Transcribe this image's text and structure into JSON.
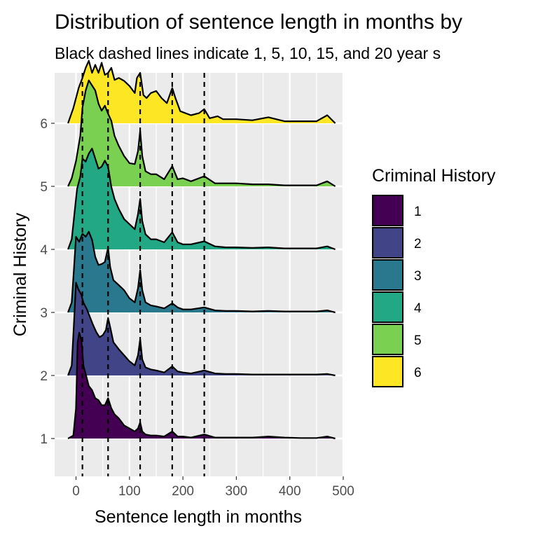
{
  "chart_data": {
    "type": "ridgeline",
    "title": "Distribution of sentence length in months by",
    "subtitle": "Black dashed lines indicate 1, 5, 10, 15, and 20 year s",
    "xlabel": "Sentence length in months",
    "ylabel": "Criminal History",
    "xlim": [
      -40,
      500
    ],
    "ylim": [
      0.4,
      6.8
    ],
    "x_ticks": [
      0,
      100,
      200,
      300,
      400,
      500
    ],
    "y_ticks": [
      1,
      2,
      3,
      4,
      5,
      6
    ],
    "reference_lines_x": [
      12,
      60,
      120,
      180,
      240
    ],
    "grid": true,
    "panel_background": "#ebebeb",
    "legend": {
      "title": "Criminal History",
      "position": "right",
      "entries": [
        "1",
        "2",
        "3",
        "4",
        "5",
        "6"
      ]
    },
    "series": [
      {
        "name": "1",
        "color": "#440154",
        "x": [
          -15,
          -5,
          0,
          3,
          6,
          10,
          14,
          18,
          24,
          30,
          36,
          42,
          48,
          54,
          60,
          66,
          72,
          80,
          90,
          100,
          110,
          116,
          120,
          124,
          130,
          140,
          150,
          165,
          180,
          190,
          200,
          215,
          240,
          260,
          280,
          300,
          330,
          360,
          390,
          420,
          450,
          470,
          485
        ],
        "y": [
          0,
          0.03,
          0.3,
          0.95,
          1.05,
          0.98,
          0.72,
          0.64,
          0.52,
          0.48,
          0.4,
          0.38,
          0.33,
          0.33,
          0.4,
          0.3,
          0.24,
          0.2,
          0.13,
          0.1,
          0.07,
          0.1,
          0.16,
          0.07,
          0.04,
          0.03,
          0.03,
          0.02,
          0.07,
          0.02,
          0.02,
          0.01,
          0.04,
          0.01,
          0.01,
          0.01,
          0.01,
          0.02,
          0.01,
          0.005,
          0.005,
          0.02,
          0
        ]
      },
      {
        "name": "2",
        "color": "#414487",
        "x": [
          -15,
          -8,
          -3,
          0,
          4,
          10,
          14,
          20,
          26,
          32,
          38,
          44,
          50,
          56,
          60,
          64,
          70,
          80,
          90,
          100,
          110,
          116,
          120,
          124,
          130,
          140,
          150,
          165,
          180,
          190,
          200,
          215,
          240,
          260,
          280,
          300,
          330,
          360,
          390,
          420,
          450,
          470,
          485
        ],
        "y": [
          0,
          0.1,
          0.6,
          0.92,
          0.86,
          0.8,
          0.72,
          0.66,
          0.58,
          0.5,
          0.43,
          0.38,
          0.4,
          0.45,
          0.57,
          0.48,
          0.33,
          0.26,
          0.2,
          0.14,
          0.1,
          0.2,
          0.36,
          0.16,
          0.08,
          0.06,
          0.05,
          0.03,
          0.09,
          0.04,
          0.03,
          0.02,
          0.05,
          0.02,
          0.015,
          0.015,
          0.01,
          0.01,
          0.01,
          0.01,
          0.01,
          0.015,
          0
        ]
      },
      {
        "name": "3",
        "color": "#2a788e",
        "x": [
          -15,
          -8,
          -3,
          0,
          6,
          12,
          18,
          24,
          30,
          36,
          42,
          48,
          54,
          60,
          64,
          70,
          80,
          90,
          100,
          110,
          116,
          120,
          124,
          130,
          140,
          150,
          165,
          180,
          190,
          200,
          215,
          240,
          260,
          280,
          300,
          330,
          360,
          390,
          420,
          450,
          470,
          485
        ],
        "y": [
          0,
          0.1,
          0.5,
          0.75,
          0.7,
          0.78,
          0.75,
          0.8,
          0.72,
          0.55,
          0.47,
          0.48,
          0.5,
          0.64,
          0.45,
          0.32,
          0.27,
          0.22,
          0.14,
          0.1,
          0.24,
          0.42,
          0.22,
          0.1,
          0.07,
          0.06,
          0.04,
          0.09,
          0.05,
          0.03,
          0.03,
          0.05,
          0.02,
          0.015,
          0.015,
          0.01,
          0.015,
          0.01,
          0.01,
          0.01,
          0.02,
          0
        ]
      },
      {
        "name": "4",
        "color": "#22a884",
        "x": [
          -15,
          -8,
          -3,
          2,
          8,
          12,
          18,
          24,
          30,
          36,
          42,
          48,
          54,
          60,
          66,
          72,
          80,
          90,
          100,
          110,
          116,
          120,
          124,
          130,
          140,
          150,
          165,
          180,
          190,
          200,
          215,
          240,
          260,
          280,
          300,
          330,
          360,
          390,
          420,
          450,
          470,
          485
        ],
        "y": [
          0,
          0.1,
          0.35,
          0.6,
          0.72,
          0.9,
          0.87,
          0.95,
          1.0,
          0.9,
          0.8,
          0.82,
          0.88,
          0.82,
          0.62,
          0.5,
          0.4,
          0.3,
          0.25,
          0.2,
          0.35,
          0.5,
          0.28,
          0.15,
          0.1,
          0.1,
          0.07,
          0.17,
          0.07,
          0.05,
          0.05,
          0.08,
          0.03,
          0.02,
          0.02,
          0.015,
          0.02,
          0.01,
          0.01,
          0.01,
          0.03,
          0
        ]
      },
      {
        "name": "5",
        "color": "#7ad151",
        "x": [
          -15,
          -8,
          0,
          8,
          12,
          18,
          24,
          30,
          36,
          42,
          48,
          54,
          60,
          66,
          72,
          80,
          90,
          100,
          110,
          116,
          120,
          124,
          130,
          140,
          150,
          165,
          180,
          190,
          200,
          215,
          240,
          260,
          280,
          300,
          330,
          360,
          390,
          420,
          450,
          470,
          485
        ],
        "y": [
          0,
          0.08,
          0.25,
          0.5,
          0.78,
          0.95,
          1.05,
          1.0,
          0.95,
          0.82,
          0.75,
          0.8,
          0.72,
          0.65,
          0.5,
          0.4,
          0.3,
          0.23,
          0.22,
          0.35,
          0.55,
          0.3,
          0.15,
          0.12,
          0.12,
          0.07,
          0.2,
          0.07,
          0.08,
          0.05,
          0.1,
          0.03,
          0.03,
          0.03,
          0.02,
          0.02,
          0.01,
          0.01,
          0.01,
          0.05,
          0
        ]
      },
      {
        "name": "6",
        "color": "#fde725",
        "x": [
          -15,
          -5,
          5,
          12,
          18,
          24,
          30,
          36,
          42,
          48,
          54,
          60,
          66,
          72,
          80,
          90,
          100,
          110,
          114,
          120,
          126,
          132,
          140,
          150,
          160,
          170,
          180,
          186,
          195,
          205,
          215,
          230,
          240,
          250,
          265,
          275,
          300,
          330,
          360,
          390,
          420,
          450,
          470,
          485
        ],
        "y": [
          0,
          0.15,
          0.35,
          0.45,
          0.55,
          0.62,
          0.5,
          0.58,
          0.5,
          0.6,
          0.48,
          0.5,
          0.55,
          0.43,
          0.45,
          0.42,
          0.37,
          0.3,
          0.45,
          0.5,
          0.28,
          0.25,
          0.3,
          0.32,
          0.25,
          0.2,
          0.35,
          0.25,
          0.12,
          0.1,
          0.08,
          0.1,
          0.14,
          0.05,
          0.07,
          0.04,
          0.04,
          0.03,
          0.06,
          0.02,
          0.02,
          0.02,
          0.08,
          0
        ]
      }
    ]
  }
}
